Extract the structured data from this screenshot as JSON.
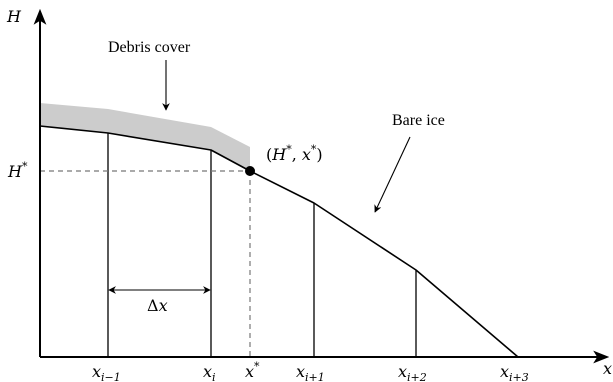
{
  "axes": {
    "y_label": "H",
    "x_label": "x"
  },
  "labels": {
    "debris_cover": "Debris cover",
    "bare_ice": "Bare ice",
    "h_star": "H",
    "h_star_sup": "*",
    "delta": "Δ",
    "delta_var": "x"
  },
  "point": {
    "open_paren": "(",
    "h": "H",
    "h_sup": "*",
    "comma": ", ",
    "x": "x",
    "x_sup": "*",
    "close_paren": ")"
  },
  "ticks": [
    {
      "base": "x",
      "sub": "i−1",
      "sup": ""
    },
    {
      "base": "x",
      "sub": "i",
      "sup": ""
    },
    {
      "base": "x",
      "sub": "",
      "sup": "*"
    },
    {
      "base": "x",
      "sub": "i+1",
      "sup": ""
    },
    {
      "base": "x",
      "sub": "i+2",
      "sup": ""
    },
    {
      "base": "x",
      "sub": "i+3",
      "sup": ""
    }
  ],
  "colors": {
    "debris": "#cccccc",
    "dashed": "#777777",
    "line": "#000000"
  }
}
